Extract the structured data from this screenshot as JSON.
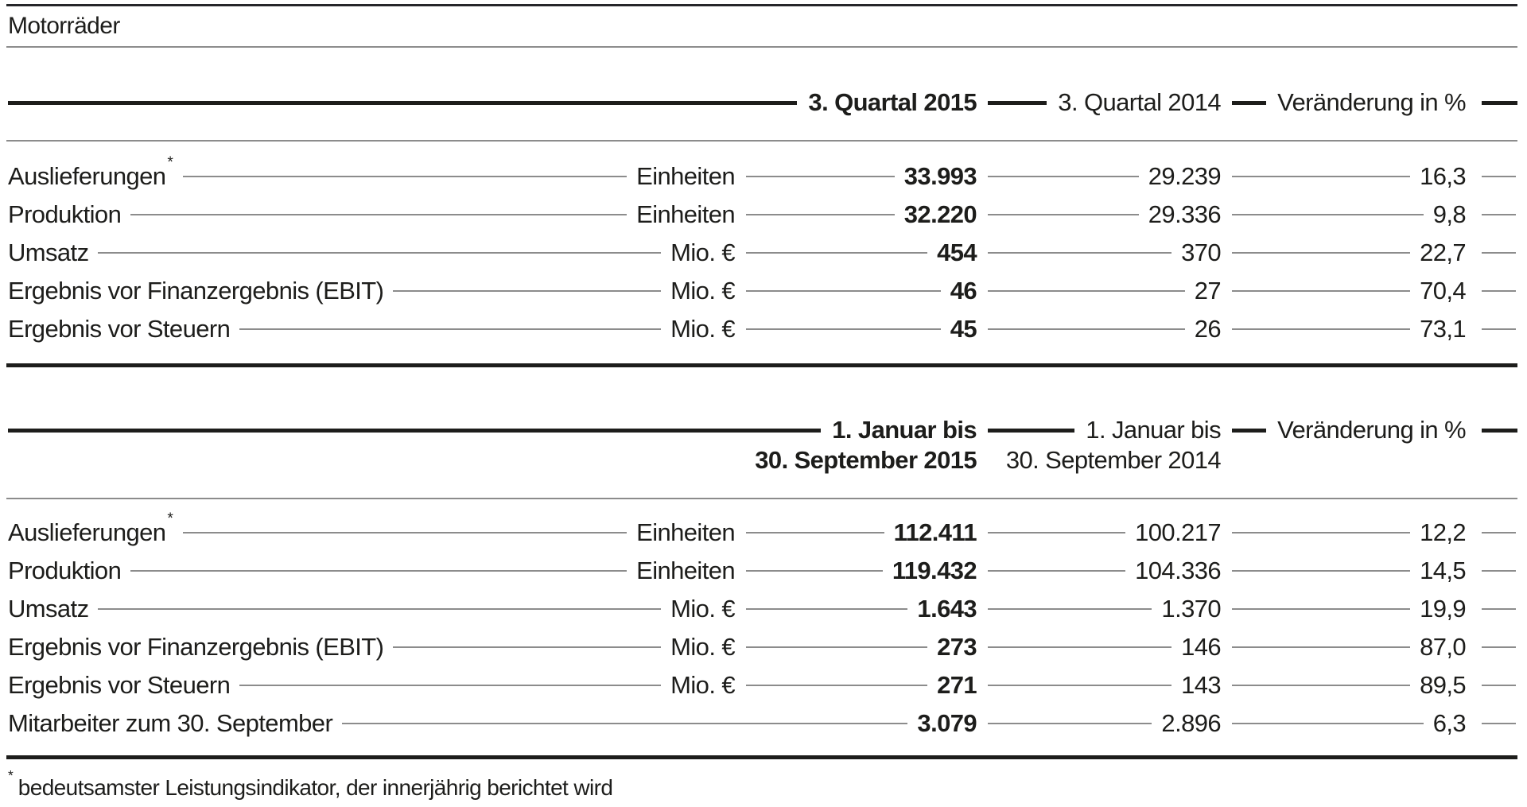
{
  "page": {
    "title": "Motorräder",
    "footnote_marker": "*",
    "footnote": "bedeutsamster Leistungsindikator, der innerjährig berichtet wird"
  },
  "colors": {
    "text": "#1d1d1b",
    "rule_heavy": "#1d1d1b",
    "rule_light": "#8c8c8c"
  },
  "tables": [
    {
      "name": "quarter",
      "columns": {
        "current": "3. Quartal 2015",
        "prior": "3. Quartal 2014",
        "change": "Veränderung in %"
      },
      "rows": [
        {
          "label": "Auslieferungen",
          "label_mark": "*",
          "unit": "Einheiten",
          "current": "33.993",
          "prior": "29.239",
          "change": "16,3"
        },
        {
          "label": "Produktion",
          "unit": "Einheiten",
          "current": "32.220",
          "prior": "29.336",
          "change": "9,8"
        },
        {
          "label": "Umsatz",
          "unit": "Mio. €",
          "current": "454",
          "prior": "370",
          "change": "22,7"
        },
        {
          "label": "Ergebnis vor Finanzergebnis (EBIT)",
          "unit": "Mio. €",
          "current": "46",
          "prior": "27",
          "change": "70,4"
        },
        {
          "label": "Ergebnis vor Steuern",
          "unit": "Mio. €",
          "current": "45",
          "prior": "26",
          "change": "73,1"
        }
      ]
    },
    {
      "name": "year-to-date",
      "columns": {
        "current_line1": "1. Januar bis",
        "current_line2": "30. September 2015",
        "prior_line1": "1. Januar bis",
        "prior_line2": "30. September 2014",
        "change": "Veränderung in %"
      },
      "rows": [
        {
          "label": "Auslieferungen",
          "label_mark": "*",
          "unit": "Einheiten",
          "current": "112.411",
          "prior": "100.217",
          "change": "12,2"
        },
        {
          "label": "Produktion",
          "unit": "Einheiten",
          "current": "119.432",
          "prior": "104.336",
          "change": "14,5"
        },
        {
          "label": "Umsatz",
          "unit": "Mio. €",
          "current": "1.643",
          "prior": "1.370",
          "change": "19,9"
        },
        {
          "label": "Ergebnis vor Finanzergebnis (EBIT)",
          "unit": "Mio. €",
          "current": "273",
          "prior": "146",
          "change": "87,0"
        },
        {
          "label": "Ergebnis vor Steuern",
          "unit": "Mio. €",
          "current": "271",
          "prior": "143",
          "change": "89,5"
        },
        {
          "label": "Mitarbeiter zum 30. September",
          "unit": "",
          "current": "3.079",
          "prior": "2.896",
          "change": "6,3"
        }
      ]
    }
  ]
}
